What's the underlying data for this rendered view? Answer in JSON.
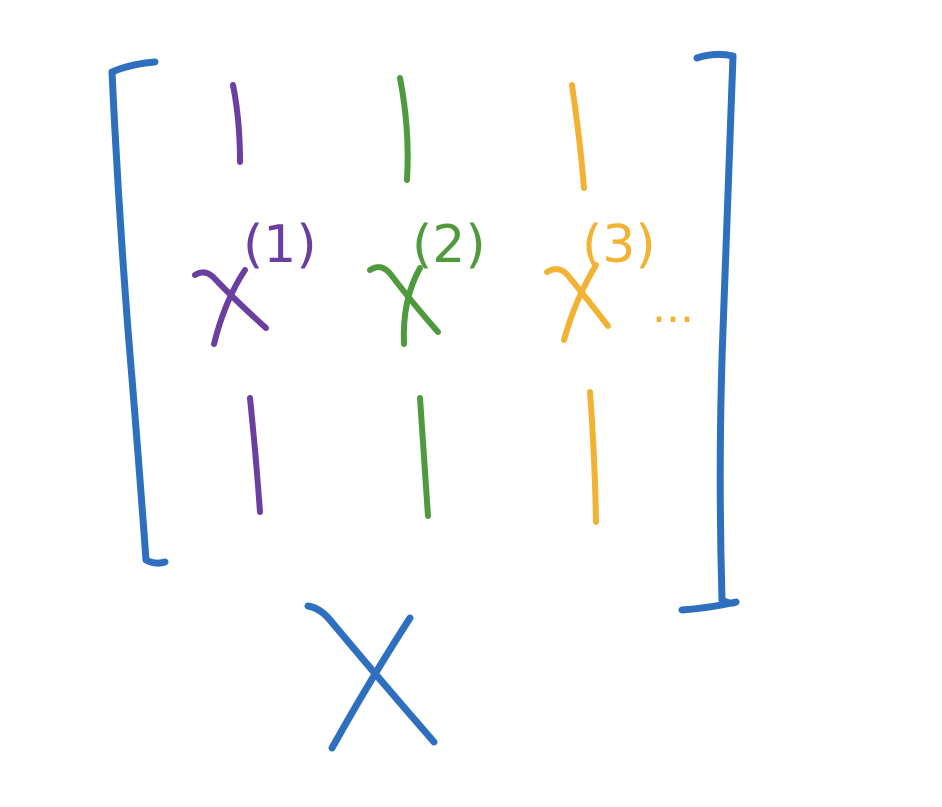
{
  "colors": {
    "background": "#ffffff",
    "bracket": "#2e6fbf",
    "column_1": "#6a3fa0",
    "column_2": "#4f9a3c",
    "column_3": "#f2b234",
    "matrix_label": "#2e6fbf"
  },
  "columns": [
    {
      "symbol": "x",
      "superscript": "(1)"
    },
    {
      "symbol": "x",
      "superscript": "(2)"
    },
    {
      "symbol": "x",
      "superscript": "(3)"
    }
  ],
  "continuation": "...",
  "matrix_label": "X"
}
